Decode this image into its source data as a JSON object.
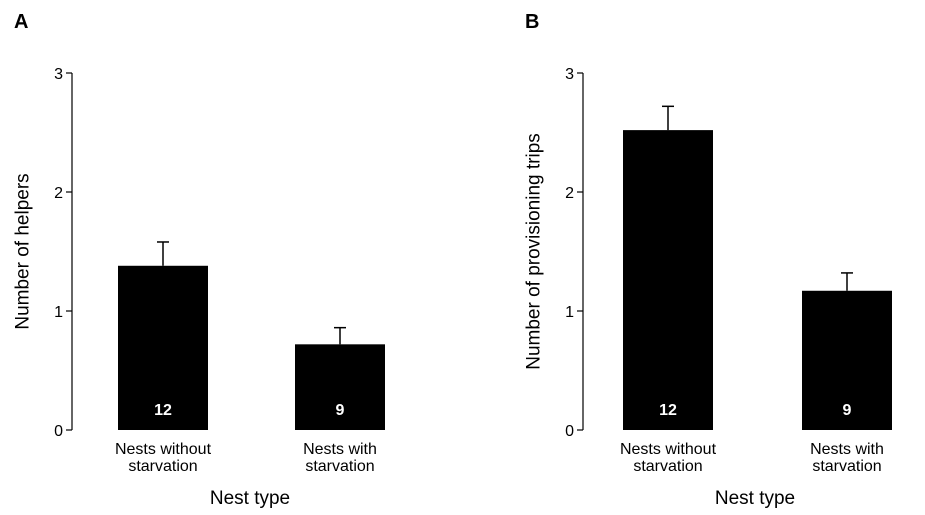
{
  "chart_data": [
    {
      "type": "bar",
      "panel_label": "A",
      "categories": [
        [
          "Nests without",
          "starvation"
        ],
        [
          "Nests with",
          "starvation"
        ]
      ],
      "values": [
        1.38,
        0.72
      ],
      "error_upper": [
        1.58,
        0.86
      ],
      "sample_sizes": [
        "12",
        "9"
      ],
      "xlabel": "Nest type",
      "ylabel": "Number of helpers",
      "ylim": [
        0,
        3
      ],
      "yticks": [
        "0",
        "1",
        "2",
        "3"
      ],
      "bar_color": "#000000",
      "grid": false
    },
    {
      "type": "bar",
      "panel_label": "B",
      "categories": [
        [
          "Nests without",
          "starvation"
        ],
        [
          "Nests with",
          "starvation"
        ]
      ],
      "values": [
        2.52,
        1.17
      ],
      "error_upper": [
        2.72,
        1.32
      ],
      "sample_sizes": [
        "12",
        "9"
      ],
      "xlabel": "Nest type",
      "ylabel": "Number of provisioning trips",
      "ylim": [
        0,
        3
      ],
      "yticks": [
        "0",
        "1",
        "2",
        "3"
      ],
      "bar_color": "#000000",
      "grid": false
    }
  ]
}
